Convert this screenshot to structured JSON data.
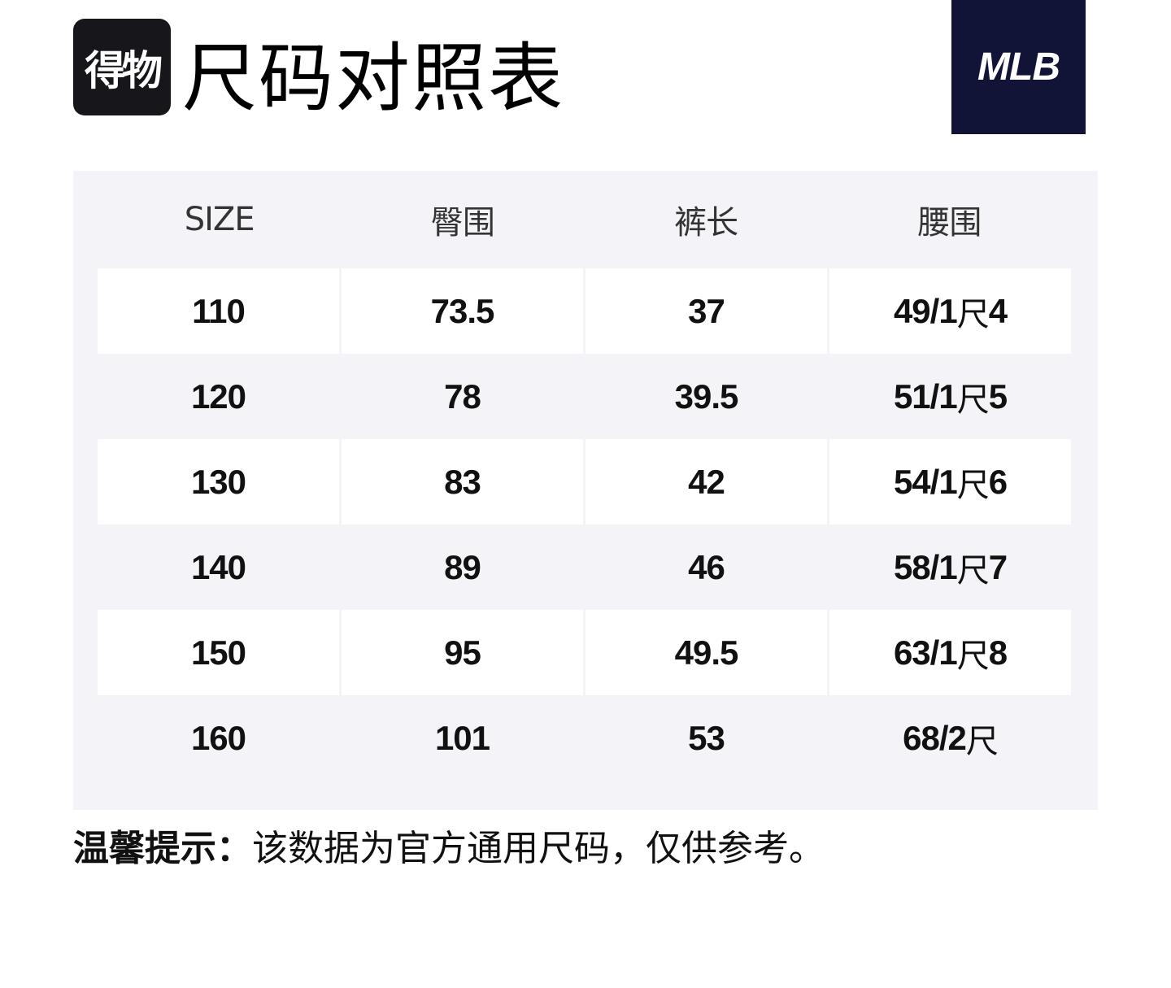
{
  "brand": {
    "dewu_logo_text": "得物",
    "mlb_logo_text": "MLB"
  },
  "title": "尺码对照表",
  "table": {
    "headers": [
      "SIZE",
      "臀围",
      "裤长",
      "腰围"
    ],
    "rows": [
      {
        "size": "110",
        "hip": "73.5",
        "length": "37",
        "waist_num": "49/1",
        "waist_unit": "尺",
        "waist_tail": "4"
      },
      {
        "size": "120",
        "hip": "78",
        "length": "39.5",
        "waist_num": "51/1",
        "waist_unit": "尺",
        "waist_tail": "5"
      },
      {
        "size": "130",
        "hip": "83",
        "length": "42",
        "waist_num": "54/1",
        "waist_unit": "尺",
        "waist_tail": "6"
      },
      {
        "size": "140",
        "hip": "89",
        "length": "46",
        "waist_num": "58/1",
        "waist_unit": "尺",
        "waist_tail": "7"
      },
      {
        "size": "150",
        "hip": "95",
        "length": "49.5",
        "waist_num": "63/1",
        "waist_unit": "尺",
        "waist_tail": "8"
      },
      {
        "size": "160",
        "hip": "101",
        "length": "53",
        "waist_num": "68/2",
        "waist_unit": "尺",
        "waist_tail": ""
      }
    ]
  },
  "note": {
    "label": "温馨提示：",
    "text": "该数据为官方通用尺码，仅供参考。"
  },
  "colors": {
    "panel_bg": "#f4f4f8",
    "row_bg": "#ffffff",
    "mlb_bg": "#121437",
    "dewu_bg": "#17171b"
  }
}
